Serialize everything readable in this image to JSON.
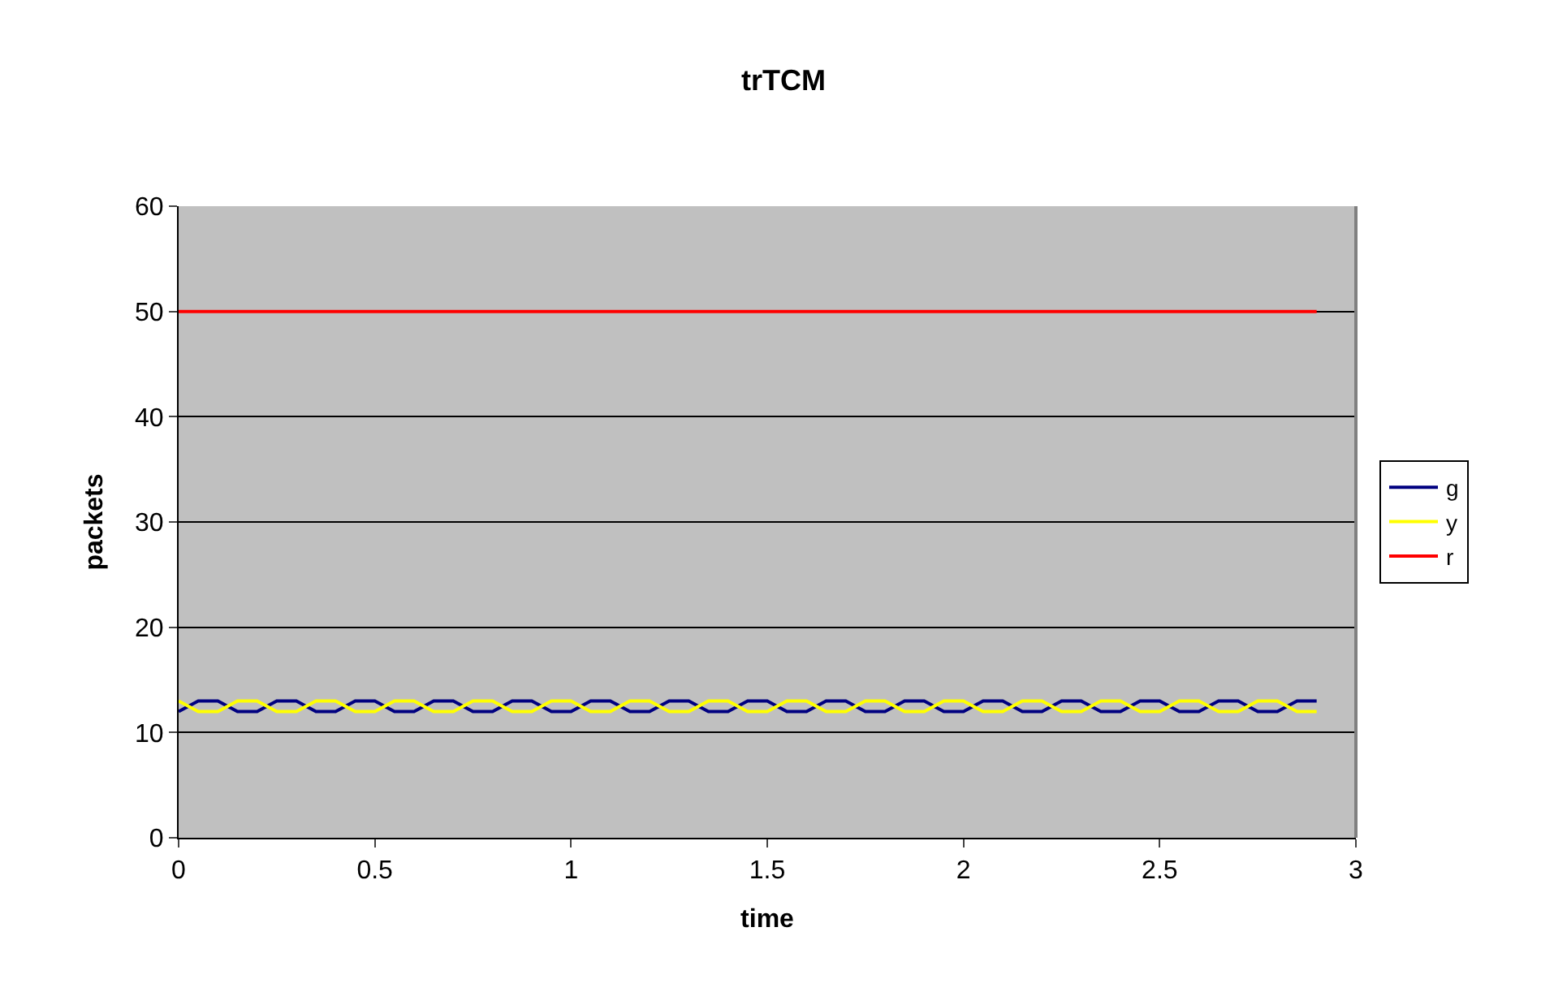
{
  "chart_data": {
    "type": "line",
    "title": "trTCM",
    "xlabel": "time",
    "ylabel": "packets",
    "x": [
      0,
      0.05,
      0.1,
      0.15,
      0.2,
      0.25,
      0.3,
      0.35,
      0.4,
      0.45,
      0.5,
      0.55,
      0.6,
      0.65,
      0.7,
      0.75,
      0.8,
      0.85,
      0.9,
      0.95,
      1,
      1.05,
      1.1,
      1.15,
      1.2,
      1.25,
      1.3,
      1.35,
      1.4,
      1.45,
      1.5,
      1.55,
      1.6,
      1.65,
      1.7,
      1.75,
      1.8,
      1.85,
      1.9,
      1.95,
      2,
      2.05,
      2.1,
      2.15,
      2.2,
      2.25,
      2.3,
      2.35,
      2.4,
      2.45,
      2.5,
      2.55,
      2.6,
      2.65,
      2.7,
      2.75,
      2.8,
      2.85,
      2.9
    ],
    "series": [
      {
        "name": "g",
        "color": "#000080",
        "values": [
          12,
          13,
          13,
          12,
          12,
          13,
          13,
          12,
          12,
          13,
          13,
          12,
          12,
          13,
          13,
          12,
          12,
          13,
          13,
          12,
          12,
          13,
          13,
          12,
          12,
          13,
          13,
          12,
          12,
          13,
          13,
          12,
          12,
          13,
          13,
          12,
          12,
          13,
          13,
          12,
          12,
          13,
          13,
          12,
          12,
          13,
          13,
          12,
          12,
          13,
          13,
          12,
          12,
          13,
          13,
          12,
          12,
          13,
          13
        ]
      },
      {
        "name": "y",
        "color": "#ffff00",
        "values": [
          13,
          12,
          12,
          13,
          13,
          12,
          12,
          13,
          13,
          12,
          12,
          13,
          13,
          12,
          12,
          13,
          13,
          12,
          12,
          13,
          13,
          12,
          12,
          13,
          13,
          12,
          12,
          13,
          13,
          12,
          12,
          13,
          13,
          12,
          12,
          13,
          13,
          12,
          12,
          13,
          13,
          12,
          12,
          13,
          13,
          12,
          12,
          13,
          13,
          12,
          12,
          13,
          13,
          12,
          12,
          13,
          13,
          12,
          12
        ]
      },
      {
        "name": "r",
        "color": "#ff0000",
        "values": [
          50,
          50,
          50,
          50,
          50,
          50,
          50,
          50,
          50,
          50,
          50,
          50,
          50,
          50,
          50,
          50,
          50,
          50,
          50,
          50,
          50,
          50,
          50,
          50,
          50,
          50,
          50,
          50,
          50,
          50,
          50,
          50,
          50,
          50,
          50,
          50,
          50,
          50,
          50,
          50,
          50,
          50,
          50,
          50,
          50,
          50,
          50,
          50,
          50,
          50,
          50,
          50,
          50,
          50,
          50,
          50,
          50,
          50,
          50
        ]
      }
    ],
    "xlim": [
      0,
      3
    ],
    "xticks": [
      0,
      0.5,
      1,
      1.5,
      2,
      2.5,
      3
    ],
    "ylim": [
      0,
      60
    ],
    "yticks": [
      0,
      10,
      20,
      30,
      40,
      50,
      60
    ],
    "grid": "y",
    "legend": "right",
    "marker": "none",
    "line_style": "solid"
  }
}
